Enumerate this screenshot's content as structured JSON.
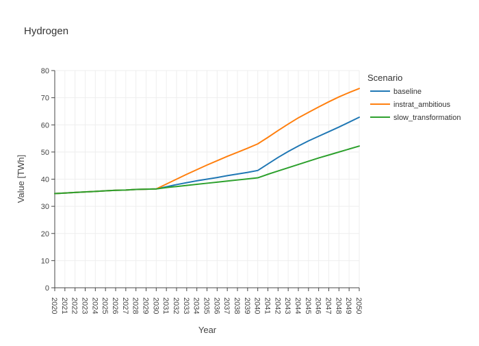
{
  "chart_data": {
    "type": "line",
    "title": "Hydrogen",
    "xlabel": "Year",
    "ylabel": "Value [TWh]",
    "xlim": [
      2020,
      2050
    ],
    "ylim": [
      0,
      80
    ],
    "yticks": [
      0,
      10,
      20,
      30,
      40,
      50,
      60,
      70,
      80
    ],
    "x": [
      2020,
      2021,
      2022,
      2023,
      2024,
      2025,
      2026,
      2027,
      2028,
      2029,
      2030,
      2031,
      2032,
      2033,
      2034,
      2035,
      2036,
      2037,
      2038,
      2039,
      2040,
      2041,
      2042,
      2043,
      2044,
      2045,
      2046,
      2047,
      2048,
      2049,
      2050
    ],
    "grid": true,
    "legend": {
      "title": "Scenario",
      "placement": "right"
    },
    "series": [
      {
        "name": "baseline",
        "color": "#1f77b4",
        "values": [
          34.7,
          34.9,
          35.1,
          35.3,
          35.5,
          35.7,
          35.9,
          36.0,
          36.2,
          36.3,
          36.4,
          37.2,
          38.0,
          38.7,
          39.4,
          40.0,
          40.6,
          41.3,
          41.9,
          42.5,
          43.2,
          45.6,
          48.0,
          50.2,
          52.2,
          54.1,
          55.8,
          57.5,
          59.2,
          61.0,
          62.8
        ]
      },
      {
        "name": "instrat_ambitious",
        "color": "#ff7f0e",
        "values": [
          34.7,
          34.9,
          35.1,
          35.3,
          35.5,
          35.7,
          35.9,
          36.0,
          36.2,
          36.3,
          36.4,
          38.2,
          40.0,
          41.8,
          43.5,
          45.2,
          46.8,
          48.4,
          49.9,
          51.4,
          53.0,
          55.4,
          57.9,
          60.3,
          62.6,
          64.6,
          66.6,
          68.5,
          70.3,
          71.9,
          73.4
        ]
      },
      {
        "name": "slow_transformation",
        "color": "#2ca02c",
        "values": [
          34.7,
          34.9,
          35.1,
          35.3,
          35.5,
          35.7,
          35.9,
          36.0,
          36.2,
          36.3,
          36.4,
          36.9,
          37.3,
          37.7,
          38.1,
          38.5,
          38.9,
          39.3,
          39.7,
          40.1,
          40.5,
          41.8,
          43.0,
          44.2,
          45.4,
          46.6,
          47.8,
          48.9,
          50.0,
          51.1,
          52.2
        ]
      }
    ]
  }
}
